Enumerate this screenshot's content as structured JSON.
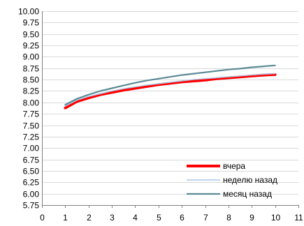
{
  "chart_data": {
    "type": "line",
    "title": "",
    "xlabel": "",
    "ylabel": "",
    "xlim": [
      0,
      11
    ],
    "ylim": [
      5.75,
      10.0
    ],
    "x_ticks": [
      0,
      1,
      2,
      3,
      4,
      5,
      6,
      7,
      8,
      9,
      10,
      11
    ],
    "y_ticks": [
      5.75,
      6.0,
      6.25,
      6.5,
      6.75,
      7.0,
      7.25,
      7.5,
      7.75,
      8.0,
      8.25,
      8.5,
      8.75,
      9.0,
      9.25,
      9.5,
      9.75,
      10.0
    ],
    "y_tick_labels": [
      "5.75",
      "6.00",
      "6.25",
      "6.50",
      "6.75",
      "7.00",
      "7.25",
      "7.50",
      "7.75",
      "8.00",
      "8.25",
      "8.50",
      "8.75",
      "9.00",
      "9.25",
      "9.50",
      "9.75",
      "10.00"
    ],
    "grid": "horizontal",
    "legend_position": "lower-right",
    "x": [
      1,
      1.5,
      2,
      2.5,
      3,
      3.5,
      4,
      4.5,
      5,
      5.5,
      6,
      6.5,
      7,
      7.5,
      8,
      8.5,
      9,
      9.5,
      10
    ],
    "series": [
      {
        "name": "вчера",
        "color": "#ff0000",
        "line_style": "thick",
        "values": [
          7.88,
          8.02,
          8.1,
          8.17,
          8.22,
          8.27,
          8.31,
          8.35,
          8.39,
          8.42,
          8.45,
          8.47,
          8.49,
          8.52,
          8.54,
          8.56,
          8.58,
          8.6,
          8.61
        ]
      },
      {
        "name": "неделю назад",
        "color": "#aac8e6",
        "line_style": "thin",
        "values": [
          7.92,
          8.05,
          8.13,
          8.19,
          8.25,
          8.3,
          8.34,
          8.38,
          8.41,
          8.44,
          8.47,
          8.5,
          8.52,
          8.54,
          8.56,
          8.58,
          8.6,
          8.62,
          8.63
        ]
      },
      {
        "name": "месяц назад",
        "color": "#5b8a96",
        "line_style": "medium",
        "values": [
          7.95,
          8.08,
          8.17,
          8.25,
          8.31,
          8.37,
          8.43,
          8.48,
          8.52,
          8.56,
          8.6,
          8.63,
          8.66,
          8.69,
          8.72,
          8.74,
          8.77,
          8.79,
          8.81
        ]
      }
    ]
  }
}
